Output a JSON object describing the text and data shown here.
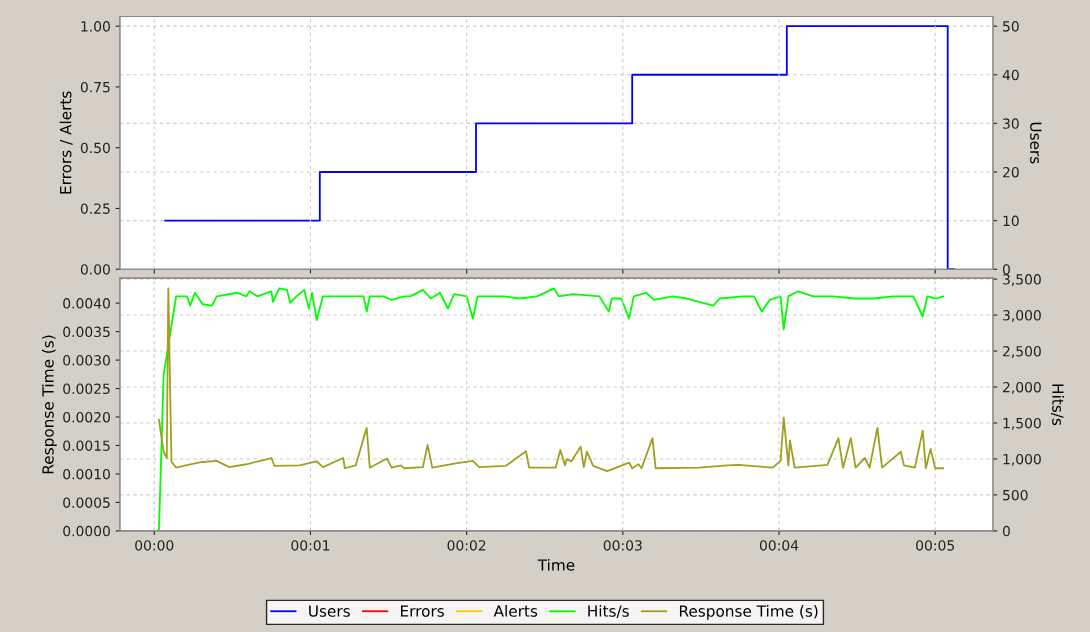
{
  "chart_data": [
    {
      "type": "line",
      "ylabel": "Errors / Alerts",
      "y2label": "Users",
      "grid": true,
      "legend": "bottom",
      "tick_labels": "y",
      "xlim": [
        -0.22,
        5.37
      ],
      "xticks": [
        {
          "value": 0,
          "label": null
        },
        {
          "value": 1,
          "label": null
        },
        {
          "value": 2,
          "label": null
        },
        {
          "value": 3,
          "label": null
        },
        {
          "value": 4,
          "label": null
        },
        {
          "value": 5,
          "label": null
        }
      ],
      "ylim": [
        0,
        1.04
      ],
      "yticks": [
        {
          "value": 0,
          "label": "0.00"
        },
        {
          "value": 0.25,
          "label": "0.25"
        },
        {
          "value": 0.5,
          "label": "0.50"
        },
        {
          "value": 0.75,
          "label": "0.75"
        },
        {
          "value": 1,
          "label": "1.00"
        }
      ],
      "y2lim": [
        0,
        52
      ],
      "y2ticks": [
        0,
        10,
        20,
        30,
        40,
        50
      ],
      "series": [
        {
          "name": "Users",
          "color": "#0000ff",
          "type": "step",
          "axis": "y2",
          "x": [
            0.07,
            1.06,
            2.06,
            3.06,
            4.05,
            5.08,
            5.12
          ],
          "values": [
            10,
            20,
            30,
            40,
            50,
            0,
            0
          ]
        },
        {
          "name": "Errors",
          "color": "#ff0000"
        },
        {
          "name": "Alerts",
          "color": "#ffc800"
        }
      ]
    },
    {
      "type": "line",
      "xlabel": "Time",
      "ylabel": "Response Time (s)",
      "y2label": "Hits/s",
      "grid": true,
      "legend": "bottom",
      "xlim": [
        -0.22,
        5.37
      ],
      "xticks": [
        {
          "value": 0,
          "label": "00:00"
        },
        {
          "value": 1,
          "label": "00:01"
        },
        {
          "value": 2,
          "label": "00:02"
        },
        {
          "value": 3,
          "label": "00:03"
        },
        {
          "value": 4,
          "label": "00:04"
        },
        {
          "value": 5,
          "label": "00:05"
        }
      ],
      "ylim": [
        0,
        0.00444
      ],
      "yticks": [
        {
          "value": 0,
          "label": "0.0000"
        },
        {
          "value": 0.0005,
          "label": "0.0005"
        },
        {
          "value": 0.001,
          "label": "0.0010"
        },
        {
          "value": 0.0015,
          "label": "0.0015"
        },
        {
          "value": 0.002,
          "label": "0.0020"
        },
        {
          "value": 0.0025,
          "label": "0.0025"
        },
        {
          "value": 0.003,
          "label": "0.0030"
        },
        {
          "value": 0.0035,
          "label": "0.0035"
        },
        {
          "value": 0.004,
          "label": "0.0040"
        }
      ],
      "y2lim": [
        0,
        3514
      ],
      "y2ticks": [
        0,
        500,
        {
          "value": 1000,
          "label": "1,000"
        },
        {
          "value": 1500,
          "label": "1,500"
        },
        {
          "value": 2000,
          "label": "2,000"
        },
        {
          "value": 2500,
          "label": "2,500"
        },
        {
          "value": 3000,
          "label": "3,000"
        },
        {
          "value": 3500,
          "label": "3,500"
        }
      ],
      "series": [
        {
          "name": "Hits/s",
          "color": "#00ff00",
          "axis": "y2",
          "x": [
            0.03,
            0.06,
            0.08,
            0.14,
            0.21,
            0.23,
            0.26,
            0.31,
            0.37,
            0.4,
            0.53,
            0.59,
            0.61,
            0.66,
            0.75,
            0.76,
            0.8,
            0.85,
            0.87,
            0.91,
            0.96,
            0.99,
            1.01,
            1.04,
            1.08,
            1.13,
            1.19,
            1.26,
            1.34,
            1.36,
            1.38,
            1.47,
            1.52,
            1.6,
            1.64,
            1.72,
            1.77,
            1.83,
            1.88,
            1.92,
            2.0,
            2.04,
            2.07,
            2.24,
            2.34,
            2.45,
            2.56,
            2.59,
            2.68,
            2.85,
            2.91,
            2.93,
            2.99,
            3.04,
            3.07,
            3.15,
            3.2,
            3.32,
            3.41,
            3.58,
            3.62,
            3.77,
            3.84,
            3.89,
            3.94,
            4.01,
            4.03,
            4.06,
            4.12,
            4.22,
            4.35,
            4.48,
            4.61,
            4.73,
            4.86,
            4.92,
            4.95,
            5.01,
            5.05
          ],
          "values": [
            0,
            2170,
            2440,
            3260,
            3260,
            3130,
            3310,
            3150,
            3130,
            3260,
            3310,
            3260,
            3330,
            3260,
            3330,
            3180,
            3370,
            3350,
            3170,
            3260,
            3350,
            3090,
            3310,
            2930,
            3260,
            3260,
            3260,
            3260,
            3260,
            3050,
            3260,
            3260,
            3210,
            3260,
            3260,
            3350,
            3230,
            3310,
            3090,
            3290,
            3260,
            2950,
            3260,
            3260,
            3230,
            3260,
            3370,
            3260,
            3290,
            3260,
            3050,
            3230,
            3230,
            2950,
            3260,
            3310,
            3210,
            3260,
            3230,
            3130,
            3230,
            3260,
            3260,
            3050,
            3210,
            3260,
            2800,
            3260,
            3330,
            3260,
            3260,
            3230,
            3230,
            3260,
            3260,
            2980,
            3260,
            3230,
            3260
          ]
        },
        {
          "name": "Response Time (s)",
          "color": "#a0a020",
          "axis": "y",
          "x": [
            0.03,
            0.06,
            0.08,
            0.09,
            0.11,
            0.14,
            0.23,
            0.31,
            0.4,
            0.48,
            0.59,
            0.75,
            0.77,
            0.93,
            1.04,
            1.08,
            1.21,
            1.22,
            1.29,
            1.36,
            1.38,
            1.49,
            1.52,
            1.58,
            1.6,
            1.72,
            1.75,
            1.78,
            1.94,
            2.04,
            2.08,
            2.25,
            2.38,
            2.4,
            2.57,
            2.6,
            2.63,
            2.64,
            2.67,
            2.73,
            2.75,
            2.77,
            2.81,
            2.9,
            3.04,
            3.06,
            3.1,
            3.12,
            3.19,
            3.21,
            3.49,
            3.67,
            3.74,
            3.96,
            4.01,
            4.03,
            4.06,
            4.07,
            4.1,
            4.31,
            4.38,
            4.41,
            4.46,
            4.49,
            4.55,
            4.58,
            4.63,
            4.66,
            4.78,
            4.8,
            4.87,
            4.92,
            4.94,
            4.97,
            5.0,
            5.05
          ],
          "values": [
            0.00195,
            0.00139,
            0.00128,
            0.00426,
            0.00122,
            0.00111,
            0.00117,
            0.00121,
            0.00123,
            0.00112,
            0.00117,
            0.00128,
            0.00114,
            0.00115,
            0.00122,
            0.00112,
            0.00128,
            0.0011,
            0.00115,
            0.00181,
            0.00111,
            0.00127,
            0.00111,
            0.00115,
            0.0011,
            0.00112,
            0.00151,
            0.00111,
            0.00119,
            0.00123,
            0.00112,
            0.00114,
            0.0014,
            0.00111,
            0.00111,
            0.00142,
            0.00115,
            0.00126,
            0.00122,
            0.00148,
            0.00112,
            0.00139,
            0.00114,
            0.00105,
            0.0012,
            0.0011,
            0.00117,
            0.0011,
            0.00163,
            0.0011,
            0.00111,
            0.00115,
            0.00116,
            0.00111,
            0.00123,
            0.00199,
            0.00115,
            0.00159,
            0.00111,
            0.00116,
            0.00163,
            0.00111,
            0.00163,
            0.00111,
            0.00128,
            0.00111,
            0.00181,
            0.00111,
            0.00139,
            0.00115,
            0.00111,
            0.00176,
            0.0011,
            0.00144,
            0.0011,
            0.0011
          ]
        }
      ]
    }
  ]
}
